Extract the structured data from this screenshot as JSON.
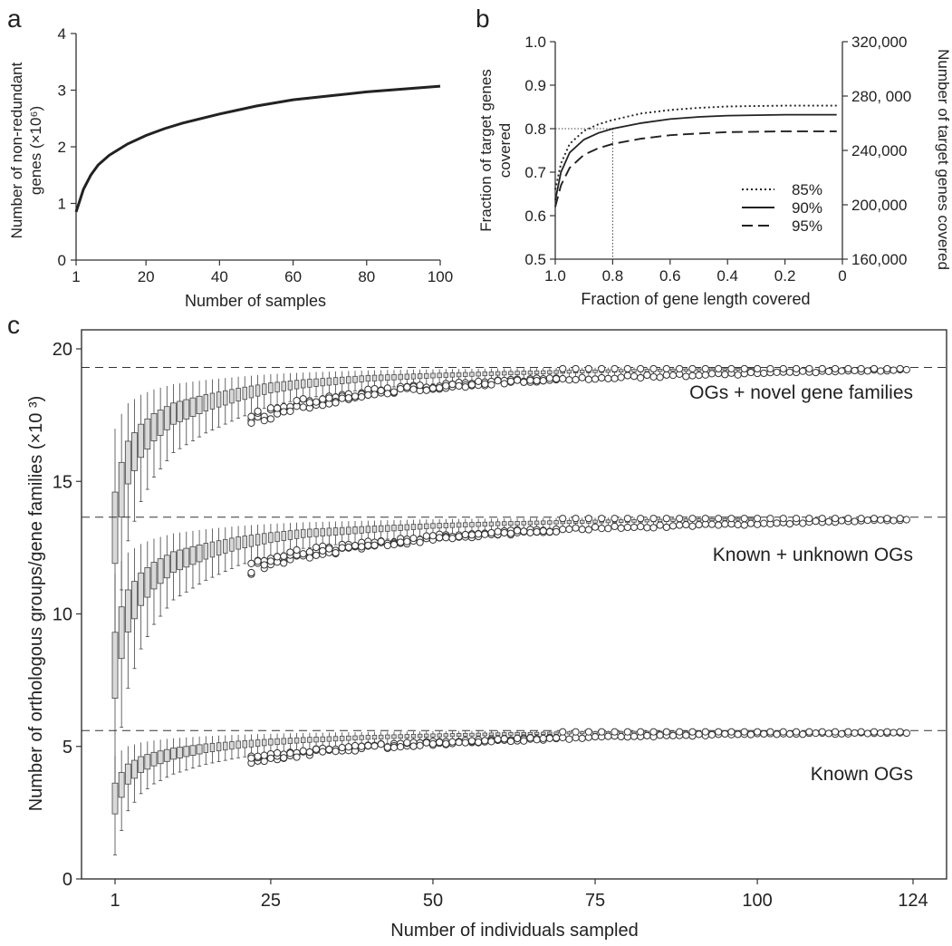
{
  "chart_data": [
    {
      "panel": "a",
      "type": "line",
      "title": "",
      "xlabel": "Number of samples",
      "ylabel": "Number of non-redundant genes (×10⁶)",
      "ylabel_line1": "Number of non-redundant",
      "ylabel_line2": "genes (×10⁶)",
      "xlim": [
        1,
        100
      ],
      "ylim": [
        0,
        4
      ],
      "xticks": [
        1,
        20,
        40,
        60,
        80,
        100
      ],
      "yticks": [
        0,
        1,
        2,
        3,
        4
      ],
      "series": [
        {
          "name": "non-redundant genes",
          "x": [
            1,
            2,
            3,
            5,
            7,
            10,
            15,
            20,
            25,
            30,
            40,
            50,
            60,
            70,
            80,
            90,
            100
          ],
          "y": [
            0.85,
            1.05,
            1.25,
            1.5,
            1.68,
            1.85,
            2.05,
            2.2,
            2.32,
            2.42,
            2.58,
            2.72,
            2.83,
            2.9,
            2.97,
            3.02,
            3.07
          ]
        }
      ]
    },
    {
      "panel": "b",
      "type": "line",
      "xlabel": "Fraction of gene length covered",
      "ylabel": "Fraction of target genes covered",
      "ylabel_line1": "Fraction of target genes",
      "ylabel_line2": "covered",
      "y2label": "Number of target genes covered",
      "xlim": [
        1.0,
        0
      ],
      "ylim": [
        0.5,
        1.0
      ],
      "y2lim": [
        160000,
        320000
      ],
      "xticks": [
        "1.0",
        "0.8",
        "0.6",
        "0.4",
        "0.2",
        "0"
      ],
      "yticks": [
        "0.5",
        "0.6",
        "0.7",
        "0.8",
        "0.9",
        "1.0"
      ],
      "y2ticks": [
        "160,000",
        "200,000",
        "240,000",
        "280, 000",
        "320,000"
      ],
      "reference_point": {
        "x": 0.8,
        "y": 0.8
      },
      "legend_position": "bottom-right",
      "series": [
        {
          "name": "85%",
          "style": "dotted",
          "x": [
            1.0,
            0.98,
            0.95,
            0.9,
            0.85,
            0.8,
            0.7,
            0.6,
            0.5,
            0.4,
            0.3,
            0.2,
            0.1,
            0.02
          ],
          "y": [
            0.66,
            0.72,
            0.765,
            0.795,
            0.81,
            0.82,
            0.835,
            0.843,
            0.848,
            0.851,
            0.852,
            0.853,
            0.853,
            0.853
          ]
        },
        {
          "name": "90%",
          "style": "solid",
          "x": [
            1.0,
            0.98,
            0.95,
            0.9,
            0.85,
            0.8,
            0.7,
            0.6,
            0.5,
            0.4,
            0.3,
            0.2,
            0.1,
            0.02
          ],
          "y": [
            0.635,
            0.7,
            0.745,
            0.775,
            0.79,
            0.8,
            0.813,
            0.822,
            0.827,
            0.83,
            0.831,
            0.832,
            0.832,
            0.832
          ]
        },
        {
          "name": "95%",
          "style": "dashed",
          "x": [
            1.0,
            0.98,
            0.95,
            0.9,
            0.85,
            0.8,
            0.7,
            0.6,
            0.5,
            0.4,
            0.3,
            0.2,
            0.1,
            0.02
          ],
          "y": [
            0.62,
            0.67,
            0.71,
            0.74,
            0.755,
            0.765,
            0.777,
            0.785,
            0.789,
            0.792,
            0.793,
            0.794,
            0.794,
            0.794
          ]
        }
      ]
    },
    {
      "panel": "c",
      "type": "box",
      "xlabel": "Number of individuals sampled",
      "ylabel": "Number of orthologous groups/gene families (×10 ³)",
      "xlim": [
        1,
        124
      ],
      "ylim": [
        0,
        20
      ],
      "xticks": [
        1,
        25,
        50,
        75,
        100,
        124
      ],
      "yticks": [
        0,
        5,
        10,
        15,
        20
      ],
      "series": [
        {
          "name": "OGs + novel gene families",
          "asymptote": 19.3,
          "x": [
            1,
            2,
            3,
            5,
            7,
            10,
            15,
            20,
            25,
            30,
            40,
            50,
            60,
            70,
            80,
            90,
            100,
            110,
            124
          ],
          "median": [
            13.4,
            14.8,
            15.8,
            16.6,
            17.1,
            17.6,
            18.0,
            18.3,
            18.55,
            18.7,
            18.9,
            19.0,
            19.08,
            19.14,
            19.18,
            19.21,
            19.24,
            19.27,
            19.3
          ]
        },
        {
          "name": "Known + unknown OGs",
          "asymptote": 13.65,
          "x": [
            1,
            2,
            3,
            5,
            7,
            10,
            15,
            20,
            25,
            30,
            40,
            50,
            60,
            70,
            80,
            90,
            100,
            110,
            124
          ],
          "median": [
            8.2,
            9.4,
            10.2,
            11.0,
            11.5,
            12.0,
            12.4,
            12.7,
            12.9,
            13.05,
            13.2,
            13.33,
            13.41,
            13.47,
            13.51,
            13.55,
            13.58,
            13.61,
            13.65
          ]
        },
        {
          "name": "Known OGs",
          "asymptote": 5.6,
          "x": [
            1,
            2,
            3,
            5,
            7,
            10,
            15,
            20,
            25,
            30,
            40,
            50,
            60,
            70,
            80,
            90,
            100,
            110,
            124
          ],
          "median": [
            3.1,
            3.6,
            4.0,
            4.35,
            4.55,
            4.75,
            4.95,
            5.08,
            5.18,
            5.25,
            5.35,
            5.42,
            5.47,
            5.51,
            5.54,
            5.56,
            5.58,
            5.59,
            5.6
          ]
        }
      ]
    }
  ],
  "panel_labels": {
    "a": "a",
    "b": "b",
    "c": "c"
  }
}
